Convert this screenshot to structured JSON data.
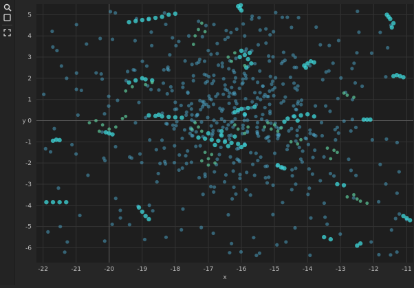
{
  "toolbar": {
    "tools": [
      {
        "name": "zoom-tool",
        "icon": "magnifier-icon"
      },
      {
        "name": "box-select-tool",
        "icon": "square-icon"
      },
      {
        "name": "reset-view-tool",
        "icon": "fullscreen-corners-icon"
      }
    ]
  },
  "colors": {
    "background": "#262626",
    "plot_background": "#1e1e1e",
    "grid": "#333333",
    "zero_line": "#5a5a5a",
    "point_blue": "#4a9ec0",
    "point_cyan": "#3fd9dc",
    "point_green": "#5cc99a",
    "text": "#bfbfbf"
  },
  "chart_data": {
    "type": "scatter",
    "xlabel": "x",
    "ylabel": "y",
    "xlim": [
      -22.2,
      -10.8
    ],
    "ylim": [
      -6.7,
      5.5
    ],
    "xticks": [
      -22,
      -21,
      -20,
      -19,
      -18,
      -17,
      -16,
      -15,
      -14,
      -13,
      -12,
      -11
    ],
    "yticks": [
      -6,
      -5,
      -4,
      -3,
      -2,
      -1,
      0,
      1,
      2,
      3,
      4,
      5
    ],
    "grid": true,
    "clusters": [
      {
        "color": "cyan",
        "points": [
          [
            -19.2,
            4.7
          ],
          [
            -19.0,
            4.75
          ],
          [
            -18.8,
            4.8
          ],
          [
            -18.6,
            4.85
          ],
          [
            -18.4,
            4.9
          ],
          [
            -18.2,
            5.0
          ],
          [
            -18.0,
            5.05
          ],
          [
            -19.4,
            4.65
          ]
        ]
      },
      {
        "color": "cyan",
        "points": [
          [
            -16.1,
            5.4
          ],
          [
            -16.05,
            5.3
          ],
          [
            -16.0,
            5.2
          ],
          [
            -16.02,
            5.45
          ]
        ]
      },
      {
        "color": "cyan",
        "points": [
          [
            -11.6,
            5.0
          ],
          [
            -11.5,
            4.8
          ],
          [
            -11.4,
            4.6
          ],
          [
            -11.45,
            4.4
          ],
          [
            -11.55,
            4.9
          ]
        ]
      },
      {
        "color": "cyan",
        "points": [
          [
            -16.0,
            3.3
          ],
          [
            -15.9,
            3.1
          ],
          [
            -15.8,
            2.9
          ],
          [
            -15.7,
            2.7
          ],
          [
            -15.85,
            2.5
          ],
          [
            -16.05,
            3.0
          ],
          [
            -15.75,
            3.2
          ]
        ]
      },
      {
        "color": "cyan",
        "points": [
          [
            -14.1,
            2.6
          ],
          [
            -14.0,
            2.7
          ],
          [
            -13.9,
            2.8
          ],
          [
            -13.8,
            2.75
          ],
          [
            -14.05,
            2.5
          ]
        ]
      },
      {
        "color": "cyan",
        "points": [
          [
            -19.4,
            1.8
          ],
          [
            -19.2,
            1.9
          ],
          [
            -19.0,
            2.0
          ],
          [
            -18.9,
            1.95
          ],
          [
            -18.7,
            1.9
          ]
        ]
      },
      {
        "color": "cyan",
        "points": [
          [
            -11.4,
            2.1
          ],
          [
            -11.3,
            2.15
          ],
          [
            -11.2,
            2.1
          ],
          [
            -11.1,
            2.05
          ]
        ]
      },
      {
        "color": "cyan",
        "points": [
          [
            -16.2,
            0.4
          ],
          [
            -16.0,
            0.55
          ],
          [
            -15.8,
            0.6
          ],
          [
            -15.6,
            0.65
          ],
          [
            -15.9,
            0.3
          ],
          [
            -16.1,
            0.5
          ]
        ]
      },
      {
        "color": "cyan",
        "points": [
          [
            -18.8,
            0.25
          ],
          [
            -18.6,
            0.22
          ],
          [
            -18.4,
            0.2
          ],
          [
            -18.2,
            0.18
          ],
          [
            -18.0,
            0.16
          ],
          [
            -17.8,
            0.14
          ],
          [
            -18.5,
            0.28
          ]
        ]
      },
      {
        "color": "cyan",
        "points": [
          [
            -14.6,
            0.1
          ],
          [
            -14.4,
            0.2
          ],
          [
            -14.2,
            0.25
          ],
          [
            -14.0,
            0.3
          ],
          [
            -13.8,
            0.2
          ],
          [
            -14.3,
            0.0
          ],
          [
            -14.7,
            -0.05
          ]
        ]
      },
      {
        "color": "cyan",
        "points": [
          [
            -17.3,
            -0.8
          ],
          [
            -17.1,
            -0.85
          ],
          [
            -16.9,
            -0.9
          ],
          [
            -16.7,
            -0.95
          ],
          [
            -16.5,
            -1.0
          ],
          [
            -16.3,
            -1.05
          ],
          [
            -16.1,
            -1.1
          ],
          [
            -15.9,
            -1.15
          ],
          [
            -16.6,
            -0.7
          ],
          [
            -16.2,
            -0.75
          ],
          [
            -16.8,
            -1.15
          ],
          [
            -16.4,
            -1.2
          ],
          [
            -16.0,
            -1.25
          ],
          [
            -17.0,
            -0.6
          ],
          [
            -16.6,
            -0.5
          ]
        ]
      },
      {
        "color": "cyan",
        "points": [
          [
            -21.7,
            -0.95
          ],
          [
            -21.6,
            -0.9
          ],
          [
            -21.5,
            -0.92
          ]
        ]
      },
      {
        "color": "cyan",
        "points": [
          [
            -20.0,
            -0.6
          ],
          [
            -19.9,
            -0.65
          ],
          [
            -20.1,
            -0.55
          ]
        ]
      },
      {
        "color": "cyan",
        "points": [
          [
            -14.9,
            -2.1
          ],
          [
            -14.8,
            -2.2
          ],
          [
            -14.7,
            -2.25
          ]
        ]
      },
      {
        "color": "cyan",
        "points": [
          [
            -21.9,
            -3.85
          ],
          [
            -21.7,
            -3.85
          ],
          [
            -21.5,
            -3.85
          ],
          [
            -21.3,
            -3.85
          ]
        ]
      },
      {
        "color": "cyan",
        "points": [
          [
            -19.1,
            -4.1
          ],
          [
            -19.0,
            -4.3
          ],
          [
            -18.9,
            -4.5
          ],
          [
            -18.8,
            -4.65
          ]
        ]
      },
      {
        "color": "cyan",
        "points": [
          [
            -13.5,
            -5.5
          ],
          [
            -13.3,
            -5.6
          ],
          [
            -12.5,
            -5.9
          ],
          [
            -12.4,
            -5.8
          ]
        ]
      },
      {
        "color": "cyan",
        "points": [
          [
            -11.1,
            -4.5
          ],
          [
            -11.0,
            -4.6
          ],
          [
            -10.9,
            -4.7
          ]
        ]
      },
      {
        "color": "cyan",
        "points": [
          [
            -13.1,
            -3.0
          ],
          [
            -12.9,
            -3.05
          ],
          [
            -12.3,
            0.05
          ],
          [
            -12.2,
            0.05
          ],
          [
            -12.1,
            0.05
          ]
        ]
      },
      {
        "color": "green",
        "points": [
          [
            -20.6,
            -0.1
          ],
          [
            -20.4,
            0.0
          ],
          [
            -20.2,
            -0.2
          ],
          [
            -20.0,
            -0.4
          ],
          [
            -19.8,
            -0.3
          ],
          [
            -19.6,
            0.1
          ],
          [
            -19.5,
            0.2
          ],
          [
            -20.3,
            -0.5
          ]
        ]
      },
      {
        "color": "green",
        "points": [
          [
            -17.0,
            -1.8
          ],
          [
            -16.9,
            -1.6
          ],
          [
            -17.1,
            -1.5
          ],
          [
            -16.8,
            -2.0
          ],
          [
            -17.2,
            -1.9
          ],
          [
            -17.0,
            -2.1
          ]
        ]
      },
      {
        "color": "green",
        "points": [
          [
            -15.3,
            -0.3
          ],
          [
            -15.1,
            -0.4
          ],
          [
            -15.0,
            -0.2
          ],
          [
            -14.8,
            -0.35
          ],
          [
            -14.9,
            -0.5
          ],
          [
            -15.2,
            -0.1
          ]
        ]
      },
      {
        "color": "green",
        "points": [
          [
            -17.4,
            -0.1
          ],
          [
            -17.3,
            -0.3
          ],
          [
            -17.5,
            -0.4
          ],
          [
            -17.2,
            -0.5
          ]
        ]
      },
      {
        "color": "green",
        "points": [
          [
            -16.2,
            -0.2
          ],
          [
            -16.1,
            -0.4
          ],
          [
            -15.9,
            -0.6
          ],
          [
            -15.8,
            -0.3
          ]
        ]
      },
      {
        "color": "green",
        "points": [
          [
            -17.4,
            4.0
          ],
          [
            -17.3,
            4.3
          ],
          [
            -17.45,
            3.6
          ],
          [
            -17.2,
            4.6
          ],
          [
            -17.1,
            4.2
          ]
        ]
      },
      {
        "color": "green",
        "points": [
          [
            -16.4,
            3.0
          ],
          [
            -16.3,
            2.8
          ],
          [
            -16.2,
            3.2
          ],
          [
            -15.9,
            2.6
          ]
        ]
      },
      {
        "color": "green",
        "points": [
          [
            -19.3,
            1.6
          ],
          [
            -19.5,
            1.4
          ],
          [
            -18.9,
            1.7
          ],
          [
            -18.7,
            1.8
          ]
        ]
      },
      {
        "color": "green",
        "points": [
          [
            -12.8,
            -3.6
          ],
          [
            -12.6,
            -3.5
          ],
          [
            -12.5,
            -3.7
          ],
          [
            -12.4,
            -3.8
          ],
          [
            -12.2,
            -3.9
          ]
        ]
      },
      {
        "color": "green",
        "points": [
          [
            -13.4,
            -1.3
          ],
          [
            -13.2,
            -1.4
          ],
          [
            -13.1,
            -1.5
          ],
          [
            -13.3,
            -1.8
          ]
        ]
      },
      {
        "color": "green",
        "points": [
          [
            -14.5,
            -1.0
          ],
          [
            -14.3,
            -1.1
          ],
          [
            -14.2,
            -0.9
          ]
        ]
      },
      {
        "color": "green",
        "points": [
          [
            -12.9,
            1.3
          ],
          [
            -12.8,
            1.2
          ],
          [
            -12.6,
            1.1
          ]
        ]
      }
    ]
  }
}
